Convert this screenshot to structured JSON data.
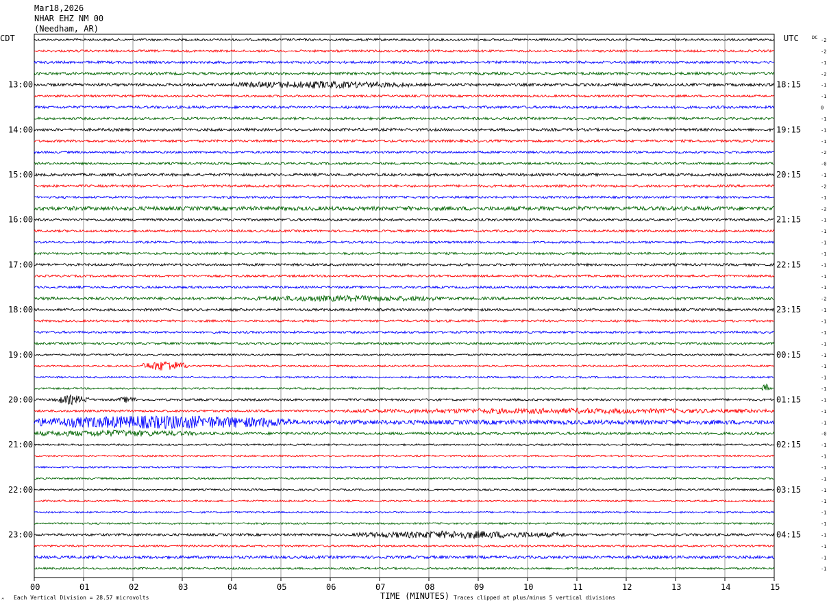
{
  "header": {
    "date": "Mar18,2026",
    "station": "NHAR EHZ NM 00",
    "location": "(Needham, AR)"
  },
  "labels": {
    "left_tz": "CDT",
    "right_tz": "UTC",
    "dc": "DC",
    "xlabel": "TIME (MINUTES)",
    "footer_left": "Each Vertical Division =   28.57 microvolts",
    "footer_right": "Traces clipped at plus/minus 5 vertical divisions"
  },
  "chart_data": {
    "type": "line",
    "title": "",
    "xlabel": "TIME (MINUTES)",
    "xlim": [
      0,
      15
    ],
    "x_ticks": [
      "00",
      "01",
      "02",
      "03",
      "04",
      "05",
      "06",
      "07",
      "08",
      "09",
      "10",
      "11",
      "12",
      "13",
      "14",
      "15"
    ],
    "grid": true,
    "trace_colors": [
      "#000000",
      "#ff0000",
      "#0000ff",
      "#006400"
    ],
    "rows": 48,
    "left_time_labels": [
      {
        "row": 4,
        "label": "13:00"
      },
      {
        "row": 8,
        "label": "14:00"
      },
      {
        "row": 12,
        "label": "15:00"
      },
      {
        "row": 16,
        "label": "16:00"
      },
      {
        "row": 20,
        "label": "17:00"
      },
      {
        "row": 24,
        "label": "18:00"
      },
      {
        "row": 28,
        "label": "19:00"
      },
      {
        "row": 32,
        "label": "20:00"
      },
      {
        "row": 36,
        "label": "21:00"
      },
      {
        "row": 40,
        "label": "22:00"
      },
      {
        "row": 44,
        "label": "23:00"
      }
    ],
    "right_time_labels": [
      {
        "row": 4,
        "label": "18:15"
      },
      {
        "row": 8,
        "label": "19:15"
      },
      {
        "row": 12,
        "label": "20:15"
      },
      {
        "row": 16,
        "label": "21:15"
      },
      {
        "row": 20,
        "label": "22:15"
      },
      {
        "row": 24,
        "label": "23:15"
      },
      {
        "row": 28,
        "label": "00:15"
      },
      {
        "row": 32,
        "label": "01:15"
      },
      {
        "row": 36,
        "label": "02:15"
      },
      {
        "row": 40,
        "label": "03:15"
      },
      {
        "row": 44,
        "label": "04:15"
      }
    ],
    "dc_offsets": [
      "-2",
      "-2",
      "-1",
      "-2",
      "-1",
      "-1",
      "0",
      "-1",
      "-1",
      "-1",
      "-2",
      "-0",
      "-1",
      "-2",
      "-1",
      "-2",
      "-1",
      "-1",
      "-1",
      "-1",
      "-1",
      "-1",
      "-1",
      "-2",
      "-1",
      "-1",
      "-1",
      "-1",
      "-1",
      "-1",
      "-1",
      "-1",
      "-1",
      "-1",
      "-1",
      "-0",
      "-1",
      "-1",
      "-1",
      "-1",
      "-1",
      "-1",
      "-1",
      "-1",
      "-1",
      "-1",
      "-1",
      "-1"
    ],
    "trace_noise_levels": [
      1.0,
      1.0,
      1.1,
      1.2,
      1.3,
      1.0,
      1.2,
      1.1,
      1.2,
      1.1,
      1.0,
      1.0,
      1.2,
      1.1,
      1.0,
      1.8,
      1.1,
      1.0,
      1.0,
      1.0,
      1.1,
      1.0,
      1.0,
      1.3,
      1.1,
      1.0,
      1.0,
      1.0,
      0.8,
      0.8,
      0.8,
      0.8,
      1.0,
      1.0,
      2.0,
      1.2,
      0.8,
      0.8,
      0.8,
      0.8,
      0.8,
      0.8,
      0.8,
      0.8,
      1.1,
      0.9,
      1.3,
      0.9
    ],
    "events": [
      {
        "row": 4,
        "start_min": 4.0,
        "end_min": 7.6,
        "amplitude": 2.2
      },
      {
        "row": 23,
        "start_min": 4.5,
        "end_min": 8.3,
        "amplitude": 1.6
      },
      {
        "row": 29,
        "start_min": 2.2,
        "end_min": 3.1,
        "amplitude": 4.5
      },
      {
        "row": 31,
        "start_min": 14.75,
        "end_min": 14.9,
        "amplitude": 4.0
      },
      {
        "row": 32,
        "start_min": 0.4,
        "end_min": 1.1,
        "amplitude": 3.5
      },
      {
        "row": 32,
        "start_min": 1.7,
        "end_min": 2.1,
        "amplitude": 2.0
      },
      {
        "row": 33,
        "start_min": 6.3,
        "end_min": 15.0,
        "amplitude": 1.6
      },
      {
        "row": 34,
        "start_min": 0.0,
        "end_min": 5.2,
        "amplitude": 4.8
      },
      {
        "row": 35,
        "start_min": 0.0,
        "end_min": 3.3,
        "amplitude": 2.0
      },
      {
        "row": 44,
        "start_min": 6.5,
        "end_min": 10.8,
        "amplitude": 2.6
      }
    ]
  }
}
